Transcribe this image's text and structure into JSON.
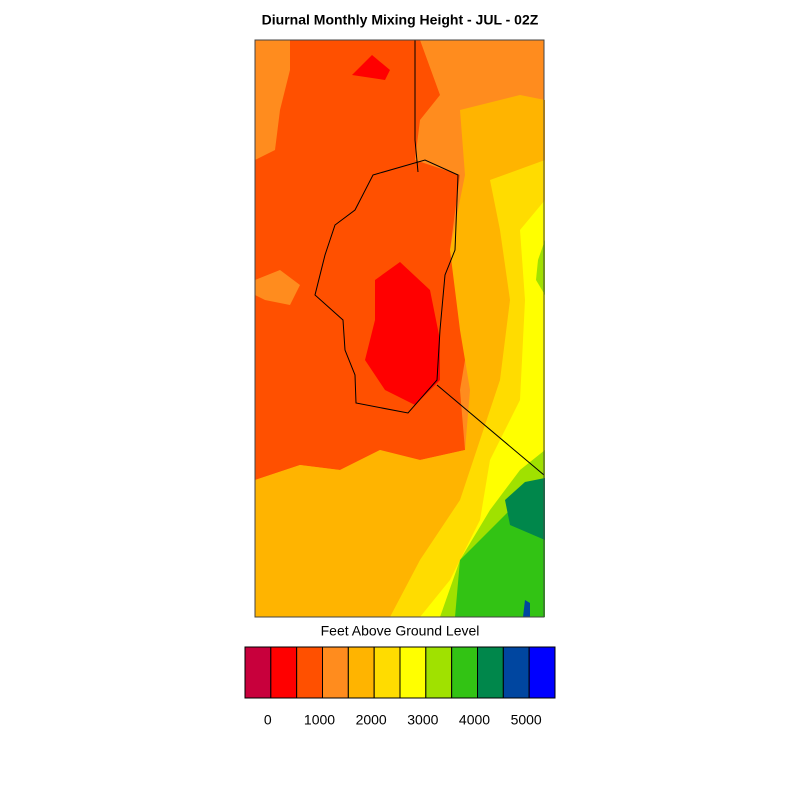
{
  "title": "Diurnal Monthly Mixing Height - JUL - 02Z",
  "colorbar": {
    "label": "Feet Above Ground Level",
    "colors": [
      "#c8003c",
      "#ff0000",
      "#ff5000",
      "#ff8c1e",
      "#ffb400",
      "#ffdc00",
      "#ffff00",
      "#a0e100",
      "#32c314",
      "#00874b",
      "#0046a0",
      "#0000ff"
    ],
    "ticks": [
      0,
      1000,
      2000,
      3000,
      4000,
      5000
    ]
  }
}
